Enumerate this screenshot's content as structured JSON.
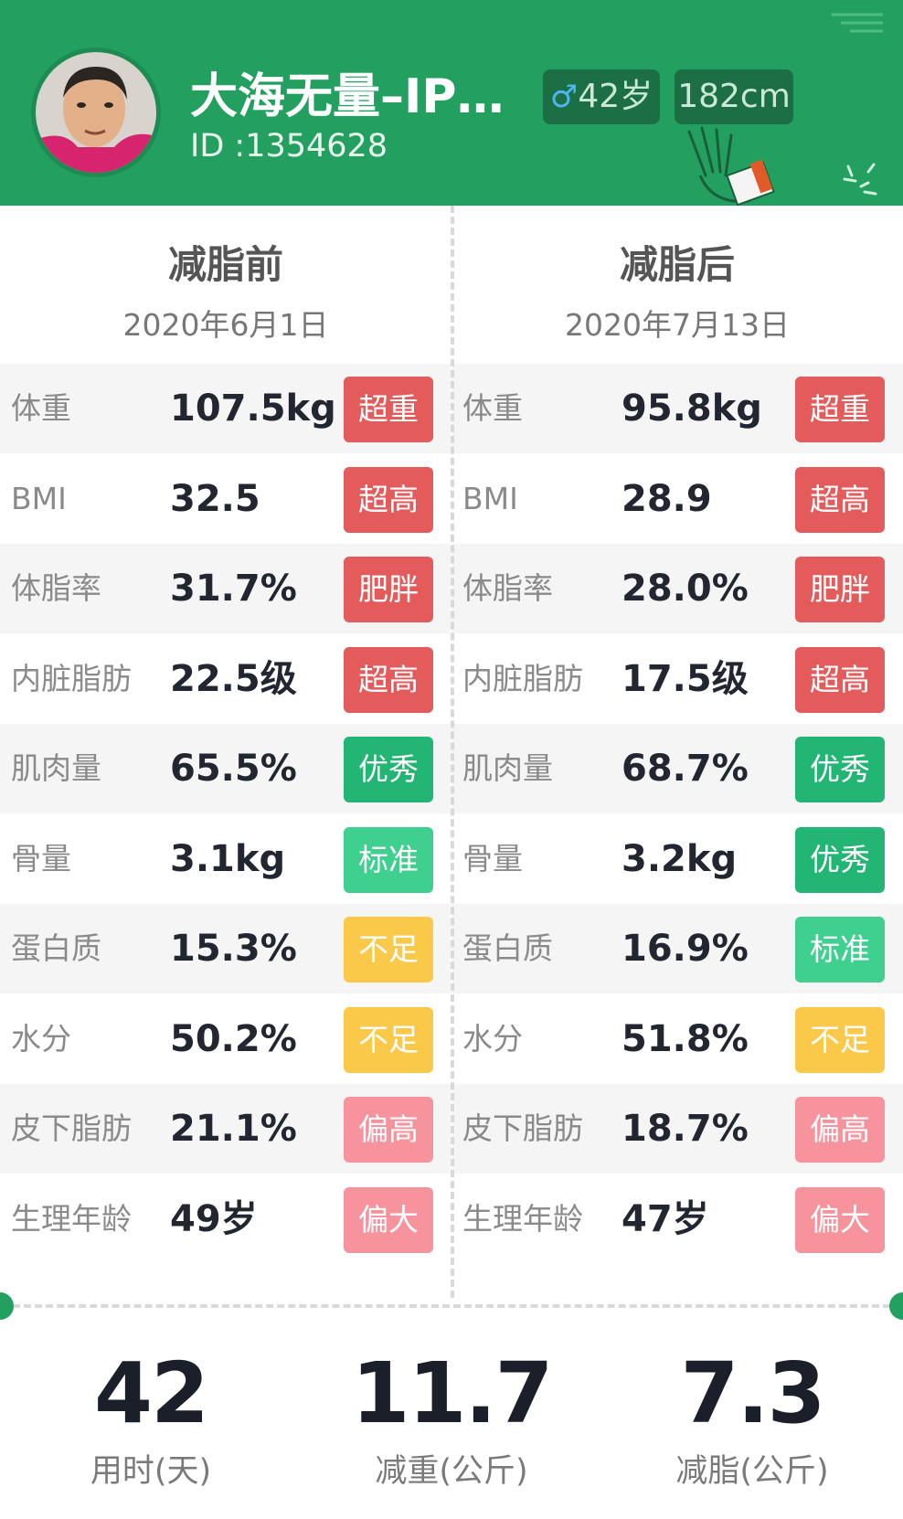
{
  "header": {
    "username": "大海无量–IP…",
    "user_id": "ID :1354628",
    "gender_symbol": "♂",
    "age": "42岁",
    "height": "182cm",
    "colors": {
      "brand_green": "#23a05f",
      "chip_bg": "#1c6e45"
    }
  },
  "before": {
    "title": "减脂前",
    "date": "2020年6月1日",
    "rows": [
      {
        "label": "体重",
        "value": "107.5kg",
        "tag": "超重",
        "tag_color": "#e35b5b"
      },
      {
        "label": "BMI",
        "value": "32.5",
        "tag": "超高",
        "tag_color": "#e35b5b"
      },
      {
        "label": "体脂率",
        "value": "31.7%",
        "tag": "肥胖",
        "tag_color": "#e35b5b"
      },
      {
        "label": "内脏脂肪",
        "value": "22.5级",
        "tag": "超高",
        "tag_color": "#e35b5b"
      },
      {
        "label": "肌肉量",
        "value": "65.5%",
        "tag": "优秀",
        "tag_color": "#23b573"
      },
      {
        "label": "骨量",
        "value": "3.1kg",
        "tag": "标准",
        "tag_color": "#3fd08f"
      },
      {
        "label": "蛋白质",
        "value": "15.3%",
        "tag": "不足",
        "tag_color": "#fbc94a"
      },
      {
        "label": "水分",
        "value": "50.2%",
        "tag": "不足",
        "tag_color": "#fbc94a"
      },
      {
        "label": "皮下脂肪",
        "value": "21.1%",
        "tag": "偏高",
        "tag_color": "#f6939c"
      },
      {
        "label": "生理年龄",
        "value": "49岁",
        "tag": "偏大",
        "tag_color": "#f6939c"
      }
    ]
  },
  "after": {
    "title": "减脂后",
    "date": "2020年7月13日",
    "rows": [
      {
        "label": "体重",
        "value": "95.8kg",
        "tag": "超重",
        "tag_color": "#e35b5b"
      },
      {
        "label": "BMI",
        "value": "28.9",
        "tag": "超高",
        "tag_color": "#e35b5b"
      },
      {
        "label": "体脂率",
        "value": "28.0%",
        "tag": "肥胖",
        "tag_color": "#e35b5b"
      },
      {
        "label": "内脏脂肪",
        "value": "17.5级",
        "tag": "超高",
        "tag_color": "#e35b5b"
      },
      {
        "label": "肌肉量",
        "value": "68.7%",
        "tag": "优秀",
        "tag_color": "#23b573"
      },
      {
        "label": "骨量",
        "value": "3.2kg",
        "tag": "优秀",
        "tag_color": "#23b573"
      },
      {
        "label": "蛋白质",
        "value": "16.9%",
        "tag": "标准",
        "tag_color": "#3fd08f"
      },
      {
        "label": "水分",
        "value": "51.8%",
        "tag": "不足",
        "tag_color": "#fbc94a"
      },
      {
        "label": "皮下脂肪",
        "value": "18.7%",
        "tag": "偏高",
        "tag_color": "#f6939c"
      },
      {
        "label": "生理年龄",
        "value": "47岁",
        "tag": "偏大",
        "tag_color": "#f6939c"
      }
    ]
  },
  "summary": [
    {
      "value": "42",
      "caption": "用时(天)"
    },
    {
      "value": "11.7",
      "caption": "减重(公斤)"
    },
    {
      "value": "7.3",
      "caption": "减脂(公斤)"
    }
  ]
}
